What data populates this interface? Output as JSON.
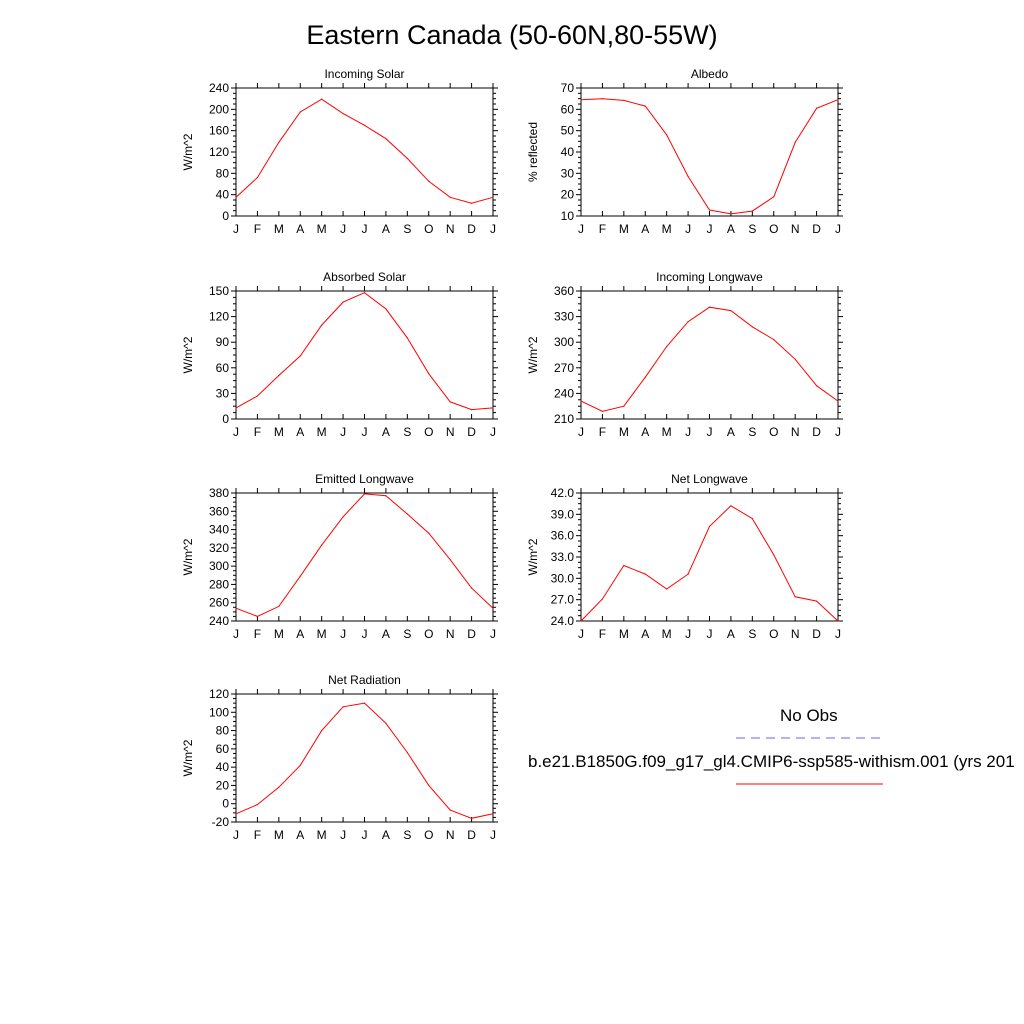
{
  "figure": {
    "title": "Eastern Canada (50-60N,80-55W)"
  },
  "legend": {
    "obs_label": "No Obs",
    "model_label": "b.e21.B1850G.f09_g17_gl4.CMIP6-ssp585-withism.001 (yrs 201",
    "obs_color": "#6666ff",
    "model_color": "#ff0000"
  },
  "colors": {
    "line": "#ff0000",
    "axes": "#000000"
  },
  "chart_data": [
    {
      "type": "line",
      "title": "Incoming Solar",
      "ylabel": "W/m^2",
      "categories": [
        "J",
        "F",
        "M",
        "A",
        "M",
        "J",
        "J",
        "A",
        "S",
        "O",
        "N",
        "D",
        "J"
      ],
      "ylim": [
        0,
        240
      ],
      "yticks": [
        0,
        40,
        80,
        120,
        160,
        200,
        240
      ],
      "ytick_labels": [
        "0",
        "40",
        "80",
        "120",
        "160",
        "200",
        "240"
      ],
      "series": [
        {
          "values": [
            35,
            72,
            138,
            195,
            219,
            192,
            170,
            145,
            108,
            65,
            35,
            24,
            35
          ]
        }
      ]
    },
    {
      "type": "line",
      "title": "Albedo",
      "ylabel": "% reflected",
      "categories": [
        "J",
        "F",
        "M",
        "A",
        "M",
        "J",
        "J",
        "A",
        "S",
        "O",
        "N",
        "D",
        "J"
      ],
      "ylim": [
        10,
        70
      ],
      "yticks": [
        10,
        20,
        30,
        40,
        50,
        60,
        70
      ],
      "ytick_labels": [
        "10",
        "20",
        "30",
        "40",
        "50",
        "60",
        "70"
      ],
      "series": [
        {
          "values": [
            64.5,
            65,
            64.2,
            61.5,
            48,
            28.5,
            12.8,
            11,
            12.3,
            19,
            44.5,
            60.5,
            64.5
          ]
        }
      ]
    },
    {
      "type": "line",
      "title": "Absorbed Solar",
      "ylabel": "W/m^2",
      "categories": [
        "J",
        "F",
        "M",
        "A",
        "M",
        "J",
        "J",
        "A",
        "S",
        "O",
        "N",
        "D",
        "J"
      ],
      "ylim": [
        0,
        150
      ],
      "yticks": [
        0,
        30,
        60,
        90,
        120,
        150
      ],
      "ytick_labels": [
        "0",
        "30",
        "60",
        "90",
        "120",
        "150"
      ],
      "series": [
        {
          "values": [
            13,
            27,
            51,
            74,
            110,
            137,
            148,
            129,
            95,
            53,
            20,
            11,
            13
          ]
        }
      ]
    },
    {
      "type": "line",
      "title": "Incoming Longwave",
      "ylabel": "W/m^2",
      "categories": [
        "J",
        "F",
        "M",
        "A",
        "M",
        "J",
        "J",
        "A",
        "S",
        "O",
        "N",
        "D",
        "J"
      ],
      "ylim": [
        210,
        360
      ],
      "yticks": [
        210,
        240,
        270,
        300,
        330,
        360
      ],
      "ytick_labels": [
        "210",
        "240",
        "270",
        "300",
        "330",
        "360"
      ],
      "series": [
        {
          "values": [
            231,
            219,
            225,
            259,
            295,
            324,
            341,
            337,
            318,
            303,
            280,
            249,
            231
          ]
        }
      ]
    },
    {
      "type": "line",
      "title": "Emitted Longwave",
      "ylabel": "W/m^2",
      "categories": [
        "J",
        "F",
        "M",
        "A",
        "M",
        "J",
        "J",
        "A",
        "S",
        "O",
        "N",
        "D",
        "J"
      ],
      "ylim": [
        240,
        380
      ],
      "yticks": [
        240,
        260,
        280,
        300,
        320,
        340,
        360,
        380
      ],
      "ytick_labels": [
        "240",
        "260",
        "280",
        "300",
        "320",
        "340",
        "360",
        "380"
      ],
      "series": [
        {
          "values": [
            254,
            245,
            256,
            289,
            323,
            354,
            379,
            377,
            357,
            336,
            307,
            276,
            254
          ]
        }
      ]
    },
    {
      "type": "line",
      "title": "Net Longwave",
      "ylabel": "W/m^2",
      "categories": [
        "J",
        "F",
        "M",
        "A",
        "M",
        "J",
        "J",
        "A",
        "S",
        "O",
        "N",
        "D",
        "J"
      ],
      "ylim": [
        24,
        42
      ],
      "yticks": [
        24,
        27,
        30,
        33,
        36,
        39,
        42
      ],
      "ytick_labels": [
        "24.0",
        "27.0",
        "30.0",
        "33.0",
        "36.0",
        "39.0",
        "42.0"
      ],
      "series": [
        {
          "values": [
            24,
            27.1,
            31.8,
            30.6,
            28.5,
            30.6,
            37.3,
            40.2,
            38.4,
            33.3,
            27.4,
            26.8,
            24
          ]
        }
      ]
    },
    {
      "type": "line",
      "title": "Net Radiation",
      "ylabel": "W/m^2",
      "categories": [
        "J",
        "F",
        "M",
        "A",
        "M",
        "J",
        "J",
        "A",
        "S",
        "O",
        "N",
        "D",
        "J"
      ],
      "ylim": [
        -20,
        120
      ],
      "yticks": [
        -20,
        0,
        20,
        40,
        60,
        80,
        100,
        120
      ],
      "ytick_labels": [
        "-20",
        "0",
        "20",
        "40",
        "60",
        "80",
        "100",
        "120"
      ],
      "series": [
        {
          "values": [
            -11,
            -1,
            18,
            42,
            80,
            106,
            110,
            88,
            56,
            20,
            -7,
            -16,
            -11
          ]
        }
      ]
    }
  ]
}
